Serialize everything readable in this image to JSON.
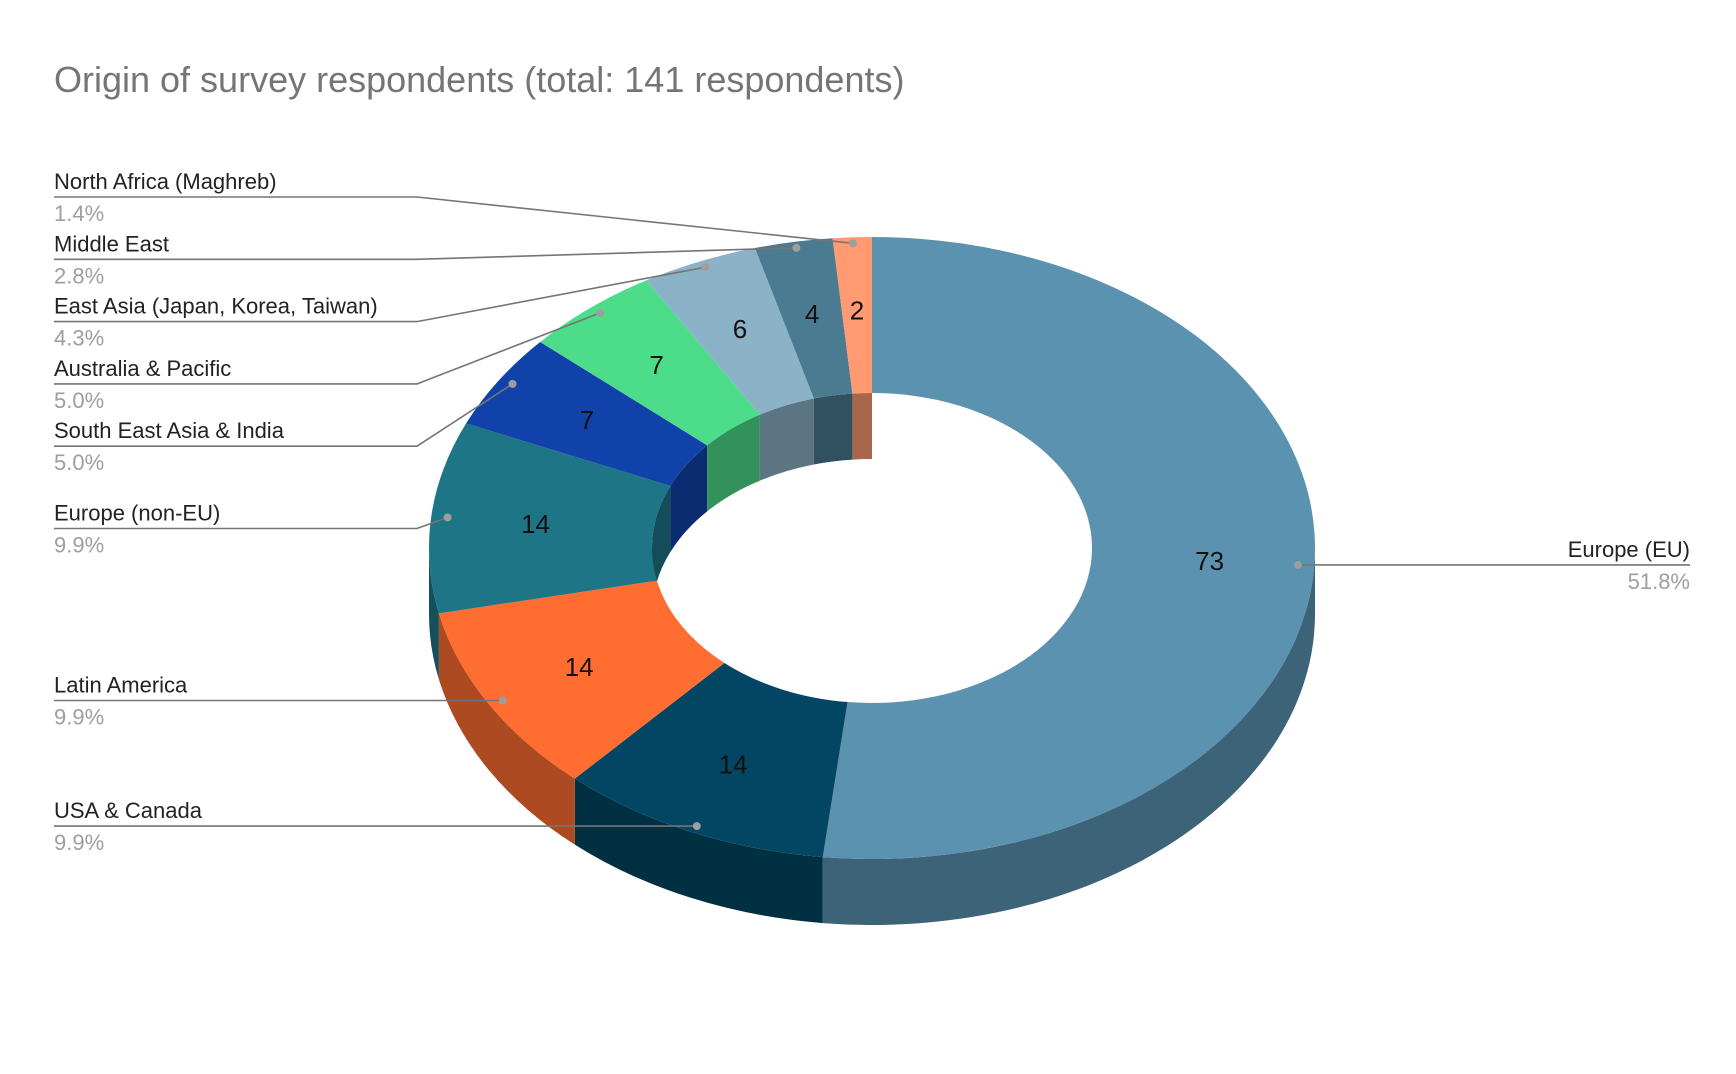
{
  "chart_data": {
    "type": "pie",
    "variant": "3d-donut",
    "title": "Origin of survey respondents (total: 141 respondents)",
    "slices": [
      {
        "label": "Europe (EU)",
        "value": 73,
        "percent": "51.8%",
        "color": "#5a92b0"
      },
      {
        "label": "USA & Canada",
        "value": 14,
        "percent": "9.9%",
        "color": "#034663"
      },
      {
        "label": "Latin America",
        "value": 14,
        "percent": "9.9%",
        "color": "#ff6d31"
      },
      {
        "label": "Europe (non-EU)",
        "value": 14,
        "percent": "9.9%",
        "color": "#1e7585"
      },
      {
        "label": "South East Asia & India",
        "value": 7,
        "percent": "5.0%",
        "color": "#1142a9"
      },
      {
        "label": "Australia & Pacific",
        "value": 7,
        "percent": "5.0%",
        "color": "#4ddc8a"
      },
      {
        "label": "East Asia (Japan, Korea, Taiwan)",
        "value": 6,
        "percent": "4.3%",
        "color": "#8cb2c7"
      },
      {
        "label": "Middle East",
        "value": 4,
        "percent": "2.8%",
        "color": "#4b7b91"
      },
      {
        "label": "North Africa (Maghreb)",
        "value": 2,
        "percent": "1.4%",
        "color": "#ff9a72"
      }
    ],
    "legend": "none",
    "labels": "callouts"
  }
}
